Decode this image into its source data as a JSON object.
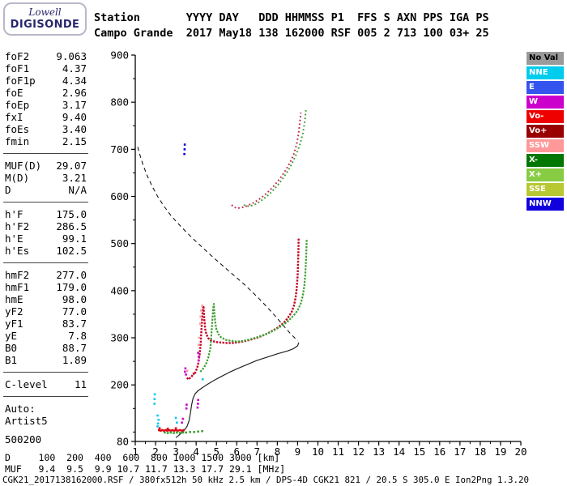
{
  "logo": {
    "line1": "Lowell",
    "line2": "DIGISONDE"
  },
  "header": {
    "line1": "Station       YYYY DAY   DDD HHMMSS P1  FFS S AXN PPS IGA PS",
    "line2": "Campo Grande  2017 May18 138 162000 RSF 005 2 713 100 03+ 25"
  },
  "params": {
    "groups": [
      {
        "rows": [
          [
            "foF2",
            "9.063"
          ],
          [
            "foF1",
            "4.37"
          ],
          [
            "foF1p",
            "4.34"
          ],
          [
            "foE",
            "2.96"
          ],
          [
            "foEp",
            "3.17"
          ],
          [
            "fxI",
            "9.40"
          ],
          [
            "foEs",
            "3.40"
          ],
          [
            "fmin",
            "2.15"
          ]
        ],
        "separator": true
      },
      {
        "rows": [
          [
            "MUF(D)",
            "29.07"
          ],
          [
            "M(D)",
            "3.21"
          ],
          [
            "D",
            "N/A"
          ]
        ],
        "separator": true
      },
      {
        "rows": [
          [
            "h'F",
            "175.0"
          ],
          [
            "h'F2",
            "286.5"
          ],
          [
            "h'E",
            "99.1"
          ],
          [
            "h'Es",
            "102.5"
          ]
        ],
        "separator": true
      },
      {
        "rows": [
          [
            "hmF2",
            "277.0"
          ],
          [
            "hmF1",
            "179.0"
          ],
          [
            "hmE",
            "98.0"
          ],
          [
            "yF2",
            "77.0"
          ],
          [
            "yF1",
            "83.7"
          ],
          [
            "yE",
            "7.8"
          ],
          [
            "B0",
            "88.7"
          ],
          [
            "B1",
            "1.89"
          ]
        ],
        "separator": true
      },
      {
        "rows": [
          [
            "C-level",
            "11"
          ]
        ],
        "separator": true
      }
    ],
    "footer_lines": [
      "Auto:",
      "Artist5",
      "500200"
    ]
  },
  "legend": {
    "items": [
      {
        "label": "No Val",
        "color": "#9a9a9a",
        "text_color": "#000000"
      },
      {
        "label": "NNE",
        "color": "#00ccee",
        "text_color": "#ffffff"
      },
      {
        "label": "E",
        "color": "#3355ee",
        "text_color": "#ffffff"
      },
      {
        "label": "W",
        "color": "#cc00cc",
        "text_color": "#ffffff"
      },
      {
        "label": "Vo-",
        "color": "#ee0000",
        "text_color": "#ffffff"
      },
      {
        "label": "Vo+",
        "color": "#990000",
        "text_color": "#ffffff"
      },
      {
        "label": "SSW",
        "color": "#ff9999",
        "text_color": "#ffffff"
      },
      {
        "label": "X-",
        "color": "#007700",
        "text_color": "#ffffff"
      },
      {
        "label": "X+",
        "color": "#88cc44",
        "text_color": "#ffffff"
      },
      {
        "label": "SSE",
        "color": "#b8c832",
        "text_color": "#ffffff"
      },
      {
        "label": "NNW",
        "color": "#1100dd",
        "text_color": "#ffffff"
      }
    ]
  },
  "muf_table": {
    "rows": [
      {
        "label": "D",
        "values": [
          "100",
          "200",
          "400",
          "600",
          "800",
          "1000",
          "1500",
          "3000"
        ],
        "unit": "[km]"
      },
      {
        "label": "MUF",
        "values": [
          "9.4",
          "9.5",
          "9.9",
          "10.7",
          "11.7",
          "13.3",
          "17.7",
          "29.1"
        ],
        "unit": "[MHz]"
      }
    ]
  },
  "status_line": "CGK21_2017138162000.RSF / 380fx512h 50 kHz 2.5 km / DPS-4D CGK21 821 / 20.5 S 305.0 E Ion2Png 1.3.20",
  "chart_data": {
    "type": "scatter",
    "title": "",
    "xlabel": "",
    "ylabel": "",
    "x_unit": "MHz",
    "y_unit": "km",
    "xlim": [
      1,
      20
    ],
    "ylim": [
      80,
      900
    ],
    "x_ticks": [
      1,
      2,
      3,
      4,
      5,
      6,
      7,
      8,
      9,
      10,
      11,
      12,
      13,
      14,
      15,
      16,
      17,
      18,
      19,
      20
    ],
    "y_ticks": [
      80,
      200,
      300,
      400,
      500,
      600,
      700,
      800,
      900
    ],
    "grid": false,
    "legend_position": "right-panel",
    "series": [
      {
        "name": "topside-profile-dashed",
        "color": "#000000",
        "style": "dashed",
        "width": 1,
        "points": [
          [
            1.12,
            705
          ],
          [
            1.25,
            685
          ],
          [
            1.4,
            665
          ],
          [
            1.6,
            643
          ],
          [
            1.85,
            620
          ],
          [
            2.1,
            600
          ],
          [
            2.4,
            580
          ],
          [
            2.75,
            560
          ],
          [
            3.1,
            543
          ],
          [
            3.5,
            525
          ],
          [
            3.9,
            508
          ],
          [
            4.3,
            492
          ],
          [
            4.7,
            476
          ],
          [
            5.1,
            461
          ],
          [
            5.5,
            446
          ],
          [
            5.9,
            431
          ],
          [
            6.3,
            416
          ],
          [
            6.7,
            400
          ],
          [
            7.1,
            383
          ],
          [
            7.5,
            365
          ],
          [
            7.9,
            346
          ],
          [
            8.3,
            326
          ],
          [
            8.6,
            311
          ],
          [
            8.85,
            300
          ],
          [
            9.0,
            293
          ]
        ]
      },
      {
        "name": "bottomside-profile",
        "color": "#222222",
        "style": "line",
        "width": 1.2,
        "points": [
          [
            3.0,
            88
          ],
          [
            3.2,
            95
          ],
          [
            3.4,
            103
          ],
          [
            3.55,
            112
          ],
          [
            3.65,
            124
          ],
          [
            3.72,
            140
          ],
          [
            3.78,
            158
          ],
          [
            3.85,
            172
          ],
          [
            3.95,
            181
          ],
          [
            4.1,
            188
          ],
          [
            4.3,
            194
          ],
          [
            4.55,
            201
          ],
          [
            4.85,
            209
          ],
          [
            5.2,
            217
          ],
          [
            5.6,
            226
          ],
          [
            6.0,
            234
          ],
          [
            6.5,
            243
          ],
          [
            7.0,
            252
          ],
          [
            7.5,
            259
          ],
          [
            8.0,
            266
          ],
          [
            8.5,
            272
          ],
          [
            8.8,
            277
          ],
          [
            9.0,
            283
          ],
          [
            9.06,
            290
          ]
        ]
      },
      {
        "name": "o-trace-F",
        "color": "#c40022",
        "style": "trace",
        "width": 2.4,
        "points": [
          [
            3.55,
            212
          ],
          [
            3.62,
            216
          ],
          [
            3.68,
            214
          ],
          [
            3.75,
            217
          ],
          [
            3.8,
            219
          ],
          [
            3.86,
            224
          ],
          [
            3.92,
            222
          ],
          [
            3.97,
            228
          ],
          [
            4.02,
            233
          ],
          [
            4.07,
            239
          ],
          [
            4.12,
            249
          ],
          [
            4.17,
            263
          ],
          [
            4.22,
            286
          ],
          [
            4.26,
            318
          ],
          [
            4.3,
            345
          ],
          [
            4.33,
            362
          ],
          [
            4.36,
            368
          ],
          [
            4.4,
            340
          ],
          [
            4.45,
            318
          ],
          [
            4.5,
            308
          ],
          [
            4.6,
            299
          ],
          [
            4.7,
            295
          ],
          [
            4.8,
            293
          ],
          [
            5.0,
            291
          ],
          [
            5.2,
            290
          ],
          [
            5.5,
            289
          ],
          [
            5.8,
            289
          ],
          [
            6.0,
            290
          ],
          [
            6.3,
            292
          ],
          [
            6.6,
            295
          ],
          [
            7.0,
            300
          ],
          [
            7.3,
            305
          ],
          [
            7.6,
            311
          ],
          [
            8.0,
            321
          ],
          [
            8.3,
            331
          ],
          [
            8.5,
            341
          ],
          [
            8.7,
            354
          ],
          [
            8.82,
            368
          ],
          [
            8.9,
            385
          ],
          [
            8.95,
            403
          ],
          [
            9.0,
            430
          ],
          [
            9.02,
            455
          ],
          [
            9.04,
            482
          ],
          [
            9.05,
            512
          ]
        ]
      },
      {
        "name": "x-trace-F",
        "color": "#3f9f30",
        "style": "trace",
        "width": 2.2,
        "points": [
          [
            4.2,
            228
          ],
          [
            4.3,
            232
          ],
          [
            4.4,
            238
          ],
          [
            4.5,
            246
          ],
          [
            4.6,
            258
          ],
          [
            4.7,
            278
          ],
          [
            4.75,
            305
          ],
          [
            4.8,
            338
          ],
          [
            4.84,
            362
          ],
          [
            4.87,
            372
          ],
          [
            4.9,
            352
          ],
          [
            4.95,
            330
          ],
          [
            5.0,
            318
          ],
          [
            5.1,
            308
          ],
          [
            5.2,
            302
          ],
          [
            5.35,
            298
          ],
          [
            5.5,
            295
          ],
          [
            5.8,
            293
          ],
          [
            6.0,
            292
          ],
          [
            6.3,
            293
          ],
          [
            6.6,
            296
          ],
          [
            7.0,
            301
          ],
          [
            7.4,
            307
          ],
          [
            7.8,
            315
          ],
          [
            8.2,
            325
          ],
          [
            8.5,
            334
          ],
          [
            8.8,
            347
          ],
          [
            9.0,
            358
          ],
          [
            9.15,
            372
          ],
          [
            9.25,
            388
          ],
          [
            9.33,
            410
          ],
          [
            9.38,
            435
          ],
          [
            9.42,
            468
          ],
          [
            9.45,
            510
          ]
        ]
      },
      {
        "name": "o-trace-2F",
        "color": "#c8284c",
        "style": "sparse",
        "width": 2,
        "points": [
          [
            5.75,
            582
          ],
          [
            5.85,
            578
          ],
          [
            6.0,
            575
          ],
          [
            6.2,
            576
          ],
          [
            6.4,
            578
          ],
          [
            6.6,
            582
          ],
          [
            6.8,
            586
          ],
          [
            7.0,
            591
          ],
          [
            7.2,
            597
          ],
          [
            7.4,
            604
          ],
          [
            7.6,
            612
          ],
          [
            7.8,
            621
          ],
          [
            8.0,
            631
          ],
          [
            8.2,
            642
          ],
          [
            8.4,
            655
          ],
          [
            8.6,
            670
          ],
          [
            8.8,
            688
          ],
          [
            8.95,
            710
          ],
          [
            9.05,
            735
          ],
          [
            9.12,
            760
          ],
          [
            9.16,
            778
          ]
        ]
      },
      {
        "name": "x-trace-2F",
        "color": "#3f9f30",
        "style": "sparse",
        "width": 2,
        "points": [
          [
            6.35,
            582
          ],
          [
            6.5,
            579
          ],
          [
            6.7,
            580
          ],
          [
            6.9,
            583
          ],
          [
            7.1,
            588
          ],
          [
            7.3,
            594
          ],
          [
            7.5,
            601
          ],
          [
            7.7,
            609
          ],
          [
            7.9,
            618
          ],
          [
            8.1,
            628
          ],
          [
            8.3,
            640
          ],
          [
            8.5,
            653
          ],
          [
            8.7,
            668
          ],
          [
            8.9,
            686
          ],
          [
            9.1,
            708
          ],
          [
            9.25,
            732
          ],
          [
            9.35,
            758
          ],
          [
            9.42,
            788
          ]
        ]
      },
      {
        "name": "es-dots-red",
        "color": "#dd0011",
        "style": "dots",
        "points": [
          [
            2.17,
            104
          ],
          [
            2.25,
            103
          ],
          [
            2.33,
            104
          ],
          [
            2.41,
            103
          ],
          [
            2.5,
            104
          ],
          [
            2.58,
            103
          ],
          [
            2.66,
            104
          ],
          [
            2.75,
            103
          ],
          [
            2.83,
            104
          ],
          [
            2.91,
            103
          ],
          [
            3.0,
            104
          ],
          [
            3.1,
            103
          ],
          [
            3.2,
            104
          ],
          [
            3.3,
            103
          ],
          [
            3.38,
            104
          ],
          [
            2.2,
            108
          ],
          [
            2.6,
            107
          ],
          [
            3.0,
            108
          ]
        ]
      },
      {
        "name": "es-dots-green",
        "color": "#3f9f30",
        "style": "dots",
        "points": [
          [
            2.45,
            99
          ],
          [
            2.6,
            98
          ],
          [
            2.75,
            99
          ],
          [
            2.9,
            98
          ],
          [
            3.05,
            99
          ],
          [
            3.2,
            98
          ],
          [
            3.35,
            99
          ],
          [
            3.5,
            99
          ],
          [
            3.7,
            100
          ],
          [
            3.9,
            100
          ],
          [
            4.1,
            101
          ],
          [
            4.3,
            102
          ]
        ]
      },
      {
        "name": "stray-dots-cyan",
        "color": "#00ccee",
        "style": "dots",
        "points": [
          [
            2.1,
            112
          ],
          [
            2.12,
            118
          ],
          [
            2.15,
            126
          ],
          [
            2.1,
            135
          ],
          [
            3.0,
            130
          ],
          [
            3.05,
            120
          ],
          [
            1.95,
            160
          ],
          [
            1.95,
            170
          ],
          [
            1.96,
            180
          ],
          [
            4.32,
            212
          ]
        ]
      },
      {
        "name": "stray-dots-magenta",
        "color": "#cc00cc",
        "style": "dots",
        "points": [
          [
            3.45,
            228
          ],
          [
            3.47,
            235
          ],
          [
            3.5,
            222
          ],
          [
            3.52,
            150
          ],
          [
            3.53,
            158
          ],
          [
            4.07,
            152
          ],
          [
            4.09,
            160
          ],
          [
            4.1,
            168
          ],
          [
            4.12,
            252
          ],
          [
            4.13,
            260
          ],
          [
            4.1,
            268
          ],
          [
            3.3,
            120
          ],
          [
            3.35,
            128
          ]
        ]
      },
      {
        "name": "stray-dots-salmon",
        "color": "#ff9999",
        "style": "dots",
        "points": [
          [
            4.2,
            330
          ],
          [
            4.22,
            345
          ],
          [
            4.25,
            358
          ],
          [
            4.3,
            368
          ],
          [
            4.15,
            300
          ],
          [
            4.12,
            285
          ],
          [
            3.56,
            230
          ]
        ]
      },
      {
        "name": "stray-dots-blue",
        "color": "#1100dd",
        "style": "dots",
        "points": [
          [
            3.42,
            690
          ],
          [
            3.43,
            700
          ],
          [
            3.44,
            710
          ]
        ]
      }
    ]
  }
}
